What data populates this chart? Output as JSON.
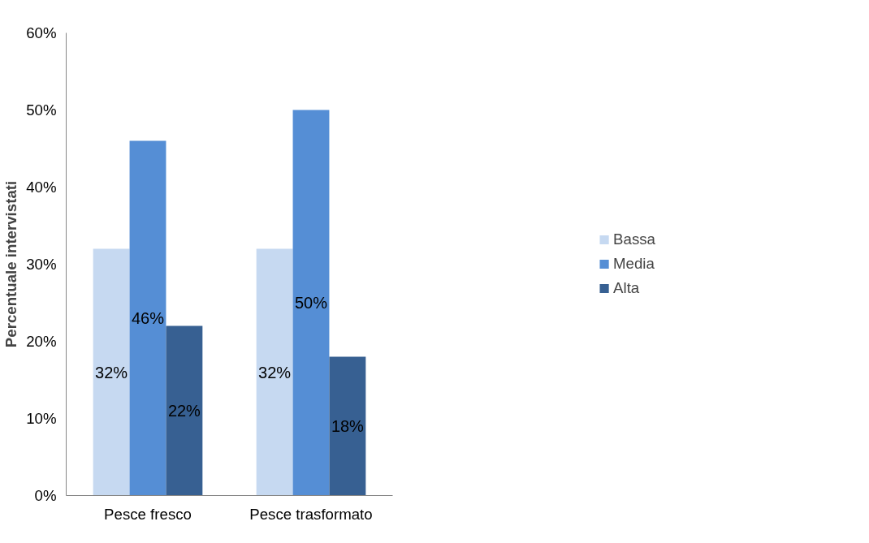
{
  "chart_data": {
    "type": "bar",
    "ylabel": "Percentuale intervistati",
    "categories": [
      "Pesce fresco",
      "Pesce trasformato"
    ],
    "series": [
      {
        "name": "Bassa",
        "color": "#c6d9f1",
        "values": [
          32,
          32
        ],
        "value_labels": [
          "32%",
          "32%"
        ]
      },
      {
        "name": "Media",
        "color": "#558ed5",
        "values": [
          46,
          50
        ],
        "value_labels": [
          "46%",
          "50%"
        ]
      },
      {
        "name": "Alta",
        "color": "#376092",
        "values": [
          22,
          18
        ],
        "value_labels": [
          "22%",
          "18%"
        ]
      }
    ],
    "ylim": [
      0,
      60
    ],
    "yticks": [
      {
        "value": 0,
        "label": "0%"
      },
      {
        "value": 10,
        "label": "10%"
      },
      {
        "value": 20,
        "label": "20%"
      },
      {
        "value": 30,
        "label": "30%"
      },
      {
        "value": 40,
        "label": "40%"
      },
      {
        "value": 50,
        "label": "50%"
      },
      {
        "value": 60,
        "label": "60%"
      }
    ],
    "grid": false,
    "legend": "right"
  }
}
